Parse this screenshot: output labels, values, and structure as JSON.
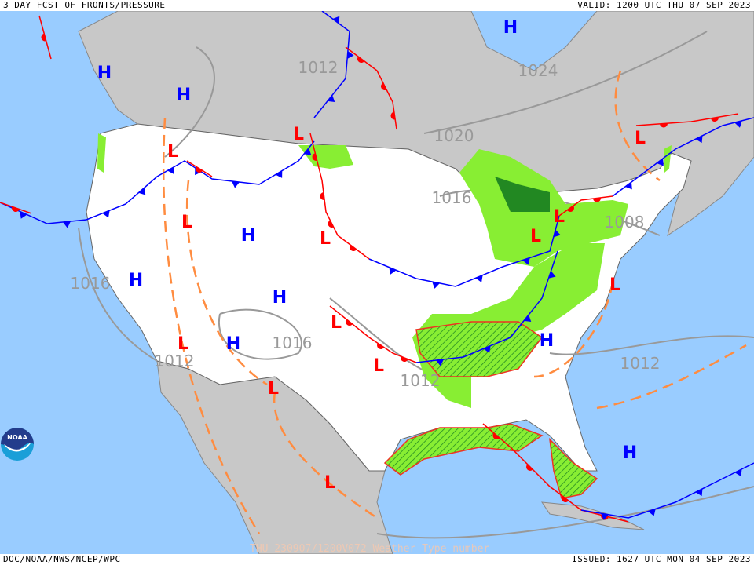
{
  "header": {
    "title": "3 DAY FCST OF FRONTS/PRESSURE",
    "valid": "VALID: 1200 UTC THU 07 SEP 2023"
  },
  "footer": {
    "agency": "DOC/NOAA/NWS/NCEP/WPC",
    "issued": "ISSUED: 1627 UTC MON 04 SEP 2023",
    "watermark": "THU 230907/1200V072 Weather Type number"
  },
  "logo": {
    "text": "NOAA"
  },
  "isobar_labels": [
    "1012",
    "1024",
    "1020",
    "1016",
    "1008",
    "1016",
    "1016",
    "1012",
    "1012",
    "1012"
  ],
  "pressure_centers": [
    "H",
    "H",
    "H",
    "H",
    "H",
    "H",
    "H",
    "H",
    "H",
    "L",
    "L",
    "L",
    "L",
    "L",
    "L",
    "L",
    "L",
    "L",
    "L",
    "L",
    "L",
    "L"
  ],
  "colors": {
    "ocean": "#99ccff",
    "foreign_land": "#c8c8c8",
    "us_land": "#ffffff",
    "high": "#0000ff",
    "low": "#ff0000",
    "cold_front": "#0000ff",
    "warm_front": "#ff0000",
    "trough": "#ff8c40",
    "precip_light": "#88ee33",
    "precip_heavy": "#228822",
    "isobar": "#999999"
  }
}
